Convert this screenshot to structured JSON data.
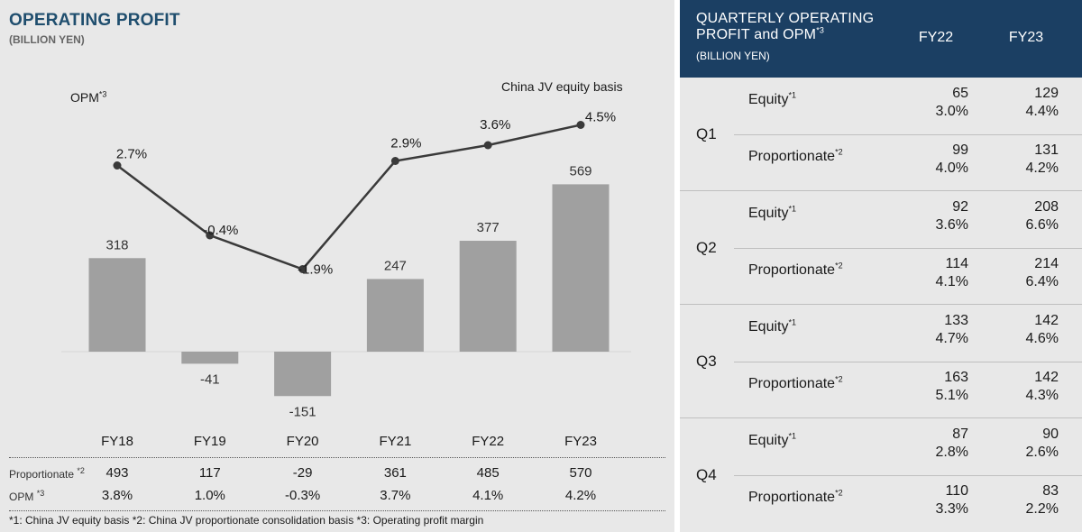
{
  "left": {
    "title": "OPERATING PROFIT",
    "unit": "(BILLION YEN)",
    "opm_label": "OPM",
    "opm_label_sup": "*3",
    "basis_label": "China JV equity basis"
  },
  "chart_data": {
    "type": "bar",
    "categories": [
      "FY18",
      "FY19",
      "FY20",
      "FY21",
      "FY22",
      "FY23"
    ],
    "series": [
      {
        "name": "Operating profit",
        "values": [
          318,
          -41,
          -151,
          247,
          377,
          569
        ],
        "labels": [
          "318",
          "-41",
          "-151",
          "247",
          "377",
          "569"
        ],
        "color": "#a0a0a0"
      },
      {
        "name": "OPM",
        "type": "line",
        "values": [
          2.7,
          -0.4,
          -1.9,
          2.9,
          3.6,
          4.5
        ],
        "labels": [
          "2.7%",
          "-0.4%",
          "-1.9%",
          "2.9%",
          "3.6%",
          "4.5%"
        ],
        "color": "#3a3a3a"
      }
    ],
    "table": {
      "rows": [
        {
          "label": "Proportionate",
          "sup": "*2",
          "values": [
            "493",
            "117",
            "-29",
            "361",
            "485",
            "570"
          ]
        },
        {
          "label": "OPM",
          "sup": "*3",
          "values": [
            "3.8%",
            "1.0%",
            "-0.3%",
            "3.7%",
            "4.1%",
            "4.2%"
          ]
        }
      ]
    }
  },
  "footnote": "*1: China JV equity basis  *2: China JV proportionate consolidation basis  *3: Operating profit margin",
  "quarterly": {
    "title_line1": "QUARTERLY OPERATING",
    "title_line2": "PROFIT and OPM",
    "title_sup": "*3",
    "unit": "(BILLION YEN)",
    "col1": "FY22",
    "col2": "FY23",
    "quarters": [
      {
        "label": "Q1",
        "rows": [
          {
            "name": "Equity",
            "sup": "*1",
            "fy22": "65",
            "fy22_opm": "3.0%",
            "fy23": "129",
            "fy23_opm": "4.4%"
          },
          {
            "name": "Proportionate",
            "sup": "*2",
            "fy22": "99",
            "fy22_opm": "4.0%",
            "fy23": "131",
            "fy23_opm": "4.2%"
          }
        ]
      },
      {
        "label": "Q2",
        "rows": [
          {
            "name": "Equity",
            "sup": "*1",
            "fy22": "92",
            "fy22_opm": "3.6%",
            "fy23": "208",
            "fy23_opm": "6.6%"
          },
          {
            "name": "Proportionate",
            "sup": "*2",
            "fy22": "114",
            "fy22_opm": "4.1%",
            "fy23": "214",
            "fy23_opm": "6.4%"
          }
        ]
      },
      {
        "label": "Q3",
        "rows": [
          {
            "name": "Equity",
            "sup": "*1",
            "fy22": "133",
            "fy22_opm": "4.7%",
            "fy23": "142",
            "fy23_opm": "4.6%"
          },
          {
            "name": "Proportionate",
            "sup": "*2",
            "fy22": "163",
            "fy22_opm": "5.1%",
            "fy23": "142",
            "fy23_opm": "4.3%"
          }
        ]
      },
      {
        "label": "Q4",
        "rows": [
          {
            "name": "Equity",
            "sup": "*1",
            "fy22": "87",
            "fy22_opm": "2.8%",
            "fy23": "90",
            "fy23_opm": "2.6%"
          },
          {
            "name": "Proportionate",
            "sup": "*2",
            "fy22": "110",
            "fy22_opm": "3.3%",
            "fy23": "83",
            "fy23_opm": "2.2%"
          }
        ]
      }
    ]
  }
}
